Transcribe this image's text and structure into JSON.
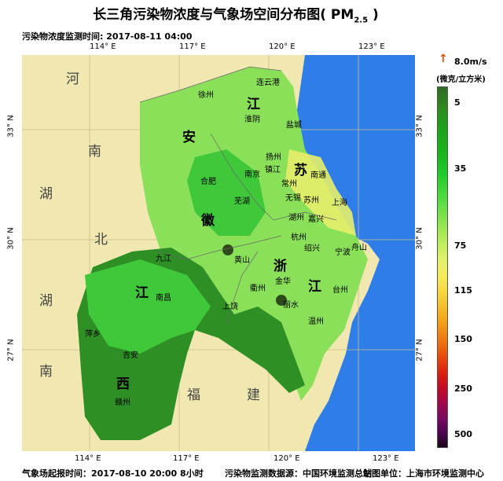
{
  "title": "长三角污染物浓度与气象场空间分布图( PM",
  "title_sub": "2.5",
  "title_tail": " )",
  "monitor_time": "污染物浓度监测时间: 2017-08-11 04:00",
  "lon_ticks": [
    "114° E",
    "117° E",
    "120° E",
    "123° E"
  ],
  "lat_ticks": [
    "33° N",
    "30° N",
    "27° N"
  ],
  "footer": {
    "forecast_time": "气象场起报时间：2017-08-10 20:00 8小时",
    "data_source": "污染物监测数据源：中国环境监测总站",
    "producer": "制图单位：上海市环境监测中心"
  },
  "legend": {
    "wind_label": "8.0m/s",
    "arrow_glyph": "↑",
    "unit": "(微克/立方米)",
    "ticks": [
      "5",
      "35",
      "75",
      "115",
      "150",
      "250",
      "500"
    ]
  },
  "provinces": [
    "江",
    "苏",
    "安",
    "徽",
    "浙",
    "江",
    "江",
    "西"
  ],
  "outer_regions": [
    "河",
    "南",
    "湖",
    "北",
    "湖",
    "南",
    "福",
    "建"
  ],
  "cities": [
    "连云港",
    "徐州",
    "淮阴",
    "盐城",
    "扬州",
    "南京",
    "镇江",
    "南通",
    "合肥",
    "常州",
    "无锡",
    "苏州",
    "上海",
    "芜湖",
    "湖州",
    "嘉兴",
    "杭州",
    "绍兴",
    "宁波",
    "舟山",
    "九江",
    "黄山",
    "衢州",
    "金华",
    "台州",
    "南昌",
    "上饶",
    "丽水",
    "温州",
    "萍乡",
    "吉安",
    "赣州"
  ],
  "colors": {
    "sea": "#2e7de8",
    "land_out": "#f0e8b0",
    "haze": "#8be05a",
    "mid_green": "#3fc83a",
    "dark_green": "#2e8f24",
    "yellow": "#e6ee6a"
  }
}
